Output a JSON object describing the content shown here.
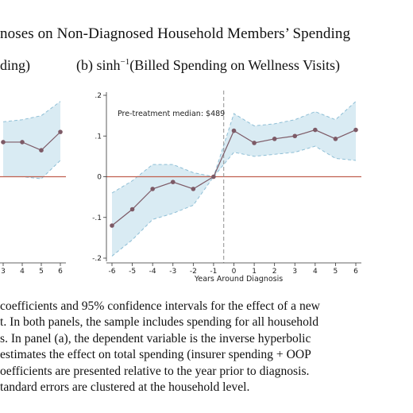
{
  "title": "noses on Non-Diagnosed Household Members’ Spending",
  "panel_a_title": "ding)",
  "panel_b_title": {
    "prefix": "(b) sinh",
    "superscript": "−1",
    "rest": "(Billed Spending on Wellness Visits)"
  },
  "colors": {
    "line": "#7d5a66",
    "band_fill": "#d9ebf3",
    "band_edge": "#8fbfd6",
    "zero_line": "#c0604f",
    "treatment_line": "#8f8f8f"
  },
  "chart_data": [
    {
      "type": "line",
      "panel": "a",
      "x": [
        3,
        4,
        5,
        6
      ],
      "y": [
        0.085,
        0.085,
        0.065,
        0.11
      ],
      "ci_low": [
        0.0,
        0.0,
        -0.005,
        0.04
      ],
      "ci_high": [
        0.135,
        0.14,
        0.15,
        0.185
      ],
      "xticklabels": [
        "3",
        "4",
        "5",
        "6"
      ]
    },
    {
      "type": "line",
      "panel": "b",
      "annotation": "Pre-treatment median: $489",
      "xlabel": "Years Around Diagnosis",
      "x": [
        -6,
        -5,
        -4,
        -3,
        -2,
        -1,
        0,
        1,
        2,
        3,
        4,
        5,
        6
      ],
      "y": [
        -0.12,
        -0.08,
        -0.03,
        -0.013,
        -0.03,
        0.0,
        0.113,
        0.083,
        0.093,
        0.1,
        0.115,
        0.093,
        0.115
      ],
      "ci_low": [
        -0.195,
        -0.155,
        -0.105,
        -0.09,
        -0.07,
        0.0,
        0.06,
        0.05,
        0.055,
        0.06,
        0.075,
        0.045,
        0.04
      ],
      "ci_high": [
        -0.04,
        -0.01,
        0.03,
        0.03,
        0.01,
        0.0,
        0.155,
        0.125,
        0.13,
        0.14,
        0.16,
        0.14,
        0.185
      ],
      "ylim": [
        -0.2,
        0.2
      ],
      "yticklabels": [
        "-.2",
        "-.1",
        "0",
        ".1",
        ".2"
      ],
      "xticklabels": [
        "-6",
        "-5",
        "-4",
        "-3",
        "-2",
        "-1",
        "0",
        "1",
        "2",
        "3",
        "4",
        "5",
        "6"
      ],
      "reference_lines": {
        "y": 0,
        "x": -0.5
      }
    }
  ],
  "caption": [
    "coefficients and 95% confidence intervals for the effect of a new",
    "t.  In both panels, the sample includes spending for all household",
    "s.  In panel (a), the dependent variable is the inverse hyperbolic",
    "estimates the effect on total spending (insurer spending + OOP",
    "oefficients are presented relative to the year prior to diagnosis.",
    "tandard errors are clustered at the household level."
  ]
}
